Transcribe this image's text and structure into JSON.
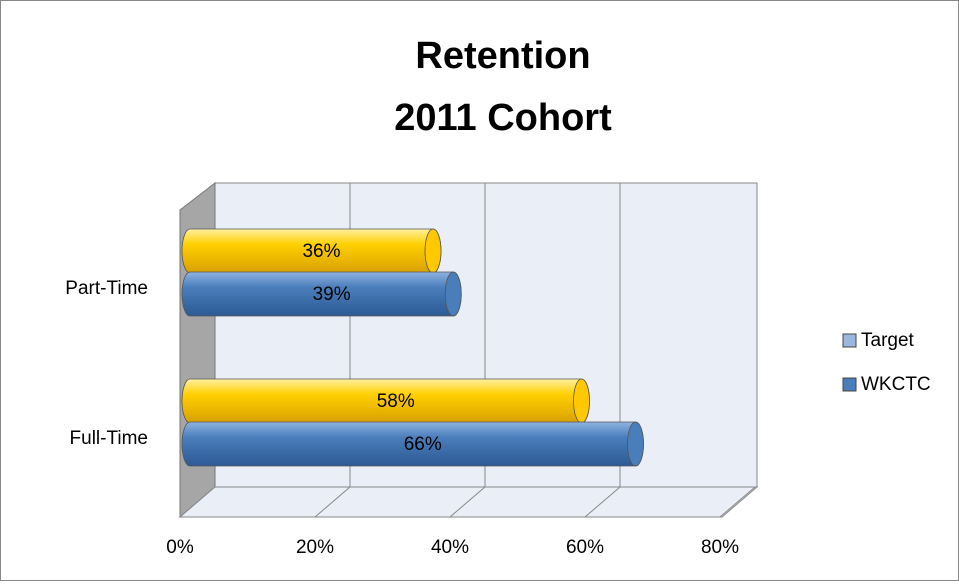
{
  "chart_data": {
    "type": "bar",
    "orientation": "horizontal",
    "style": "3d-cylinder",
    "title": "Retention",
    "subtitle": "2011 Cohort",
    "categories": [
      "Part-Time",
      "Full-Time"
    ],
    "series": [
      {
        "name": "Target",
        "color": "#ffc800",
        "legend_color": "#9bb7df",
        "values": [
          36,
          58
        ],
        "value_labels": [
          "36%",
          "58%"
        ]
      },
      {
        "name": "WKCTC",
        "color": "#4a7ebb",
        "legend_color": "#4a7ebb",
        "values": [
          39,
          66
        ],
        "value_labels": [
          "39%",
          "66%"
        ]
      }
    ],
    "xlim": [
      0,
      80
    ],
    "xticks": [
      {
        "value": 0,
        "label": "0%"
      },
      {
        "value": 20,
        "label": "20%"
      },
      {
        "value": 40,
        "label": "40%"
      },
      {
        "value": 60,
        "label": "60%"
      },
      {
        "value": 80,
        "label": "80%"
      }
    ],
    "grid": true,
    "legend": "right"
  }
}
